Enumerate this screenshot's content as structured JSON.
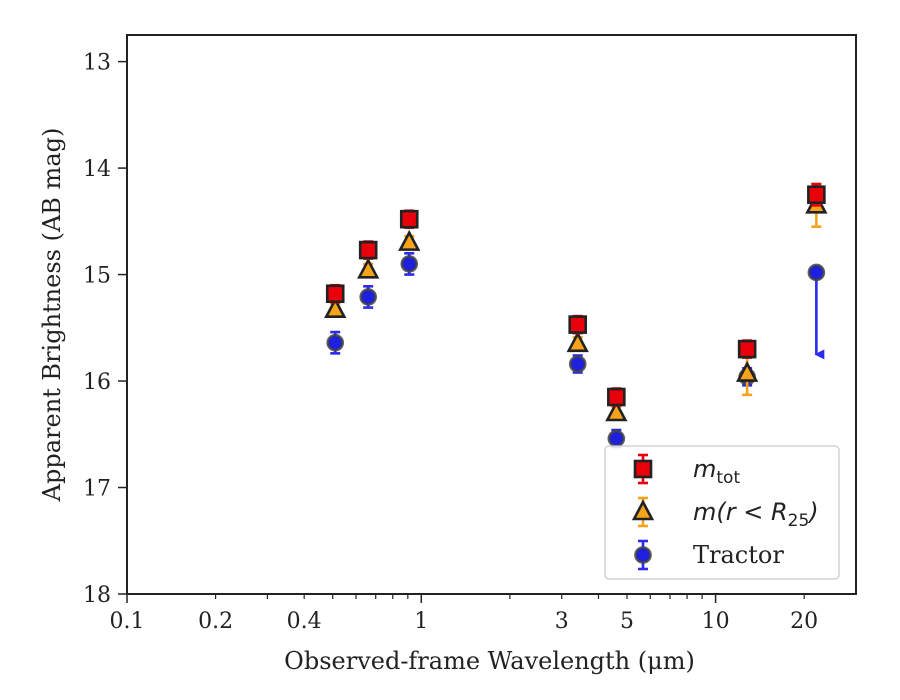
{
  "chart_data": {
    "type": "scatter",
    "xlabel": "Observed-frame Wavelength (μm)",
    "ylabel": "Apparent Brightness (AB mag)",
    "x_scale": "log",
    "xlim": [
      0.1,
      30
    ],
    "ylim": [
      18,
      12.75
    ],
    "y_inverted": true,
    "grid": false,
    "legend_position": "lower-right",
    "x_ticks": [
      {
        "value": 0.1,
        "label": "0.1"
      },
      {
        "value": 0.2,
        "label": "0.2"
      },
      {
        "value": 0.4,
        "label": "0.4"
      },
      {
        "value": 1,
        "label": "1"
      },
      {
        "value": 3,
        "label": "3"
      },
      {
        "value": 5,
        "label": "5"
      },
      {
        "value": 10,
        "label": "10"
      },
      {
        "value": 20,
        "label": "20"
      }
    ],
    "y_ticks": [
      {
        "value": 13,
        "label": "13"
      },
      {
        "value": 14,
        "label": "14"
      },
      {
        "value": 15,
        "label": "15"
      },
      {
        "value": 16,
        "label": "16"
      },
      {
        "value": 17,
        "label": "17"
      },
      {
        "value": 18,
        "label": "18"
      }
    ],
    "series": [
      {
        "name_main": "m",
        "name_sub": "tot",
        "marker": "square",
        "color": "#e8000b",
        "errcolor": "#e8000b",
        "points": [
          {
            "x": 0.51,
            "y": 15.18,
            "err": 0.08
          },
          {
            "x": 0.66,
            "y": 14.77,
            "err": 0.08
          },
          {
            "x": 0.91,
            "y": 14.48,
            "err": 0.08
          },
          {
            "x": 3.4,
            "y": 15.47,
            "err": 0.08
          },
          {
            "x": 4.6,
            "y": 16.15,
            "err": 0.08
          },
          {
            "x": 12.8,
            "y": 15.7,
            "err": 0.08
          },
          {
            "x": 22.0,
            "y": 14.25,
            "err": 0.1
          }
        ]
      },
      {
        "name_main": "m(r < R",
        "name_sub": "25",
        "name_end": ")",
        "marker": "triangle",
        "color": "#f5a31a",
        "errcolor": "#f5a31a",
        "points": [
          {
            "x": 0.51,
            "y": 15.33,
            "err": 0.06
          },
          {
            "x": 0.66,
            "y": 14.96,
            "err": 0.06
          },
          {
            "x": 0.91,
            "y": 14.7,
            "err": 0.06
          },
          {
            "x": 3.4,
            "y": 15.65,
            "err": 0.06
          },
          {
            "x": 4.6,
            "y": 16.3,
            "err": 0.06
          },
          {
            "x": 12.8,
            "y": 15.93,
            "err": 0.2
          },
          {
            "x": 22.0,
            "y": 14.35,
            "err": 0.2
          }
        ]
      },
      {
        "name_main": "Tractor",
        "marker": "circle",
        "color": "#1f1fdf",
        "errcolor": "#2a2af0",
        "points": [
          {
            "x": 0.51,
            "y": 15.64,
            "err": 0.1
          },
          {
            "x": 0.66,
            "y": 15.21,
            "err": 0.1
          },
          {
            "x": 0.91,
            "y": 14.9,
            "err": 0.1
          },
          {
            "x": 3.4,
            "y": 15.84,
            "err": 0.08
          },
          {
            "x": 4.6,
            "y": 16.54,
            "err": 0.08
          },
          {
            "x": 12.8,
            "y": 15.96,
            "err": 0.08
          },
          {
            "x": 22.0,
            "y": 14.98,
            "upper_limit_to": 15.75
          }
        ]
      }
    ]
  }
}
